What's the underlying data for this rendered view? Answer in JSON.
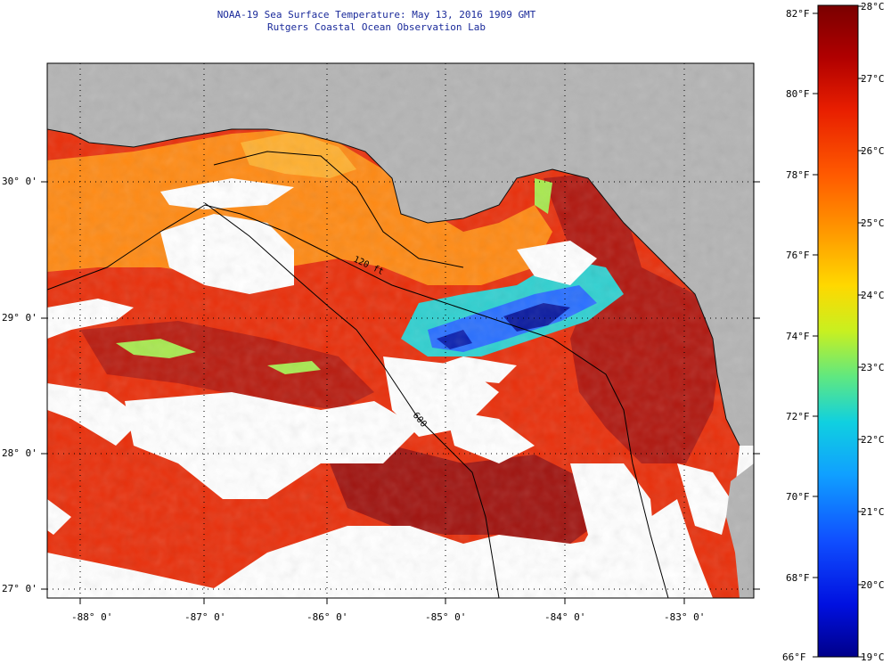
{
  "title": {
    "line1": "NOAA-19 Sea Surface Temperature:  May 13, 2016 1909 GMT",
    "line2": "Rutgers Coastal Ocean Observation Lab"
  },
  "map": {
    "lat_labels": [
      "30° 0'",
      "29° 0'",
      "28° 0'",
      "27° 0'"
    ],
    "lon_labels": [
      "-88° 0'",
      "-87° 0'",
      "-86° 0'",
      "-85° 0'",
      "-84° 0'",
      "-83° 0'"
    ],
    "contour_labels": [
      "120 ft",
      "600"
    ]
  },
  "colorbar": {
    "fahrenheit": [
      "82°F",
      "80°F",
      "78°F",
      "76°F",
      "74°F",
      "72°F",
      "70°F",
      "68°F",
      "66°F"
    ],
    "celsius": [
      "28°C",
      "27°C",
      "26°C",
      "25°C",
      "24°C",
      "23°C",
      "22°C",
      "21°C",
      "20°C",
      "19°C"
    ]
  },
  "colors": {
    "title": "#1a2a9a",
    "land": "#b4b4b4",
    "cloud": "#ffffff",
    "warm_dark": "#a01010",
    "warm": "#e82a0a",
    "mid": "#ff7a10",
    "cool": "#2a7aff",
    "cold": "#0a1a9a"
  }
}
